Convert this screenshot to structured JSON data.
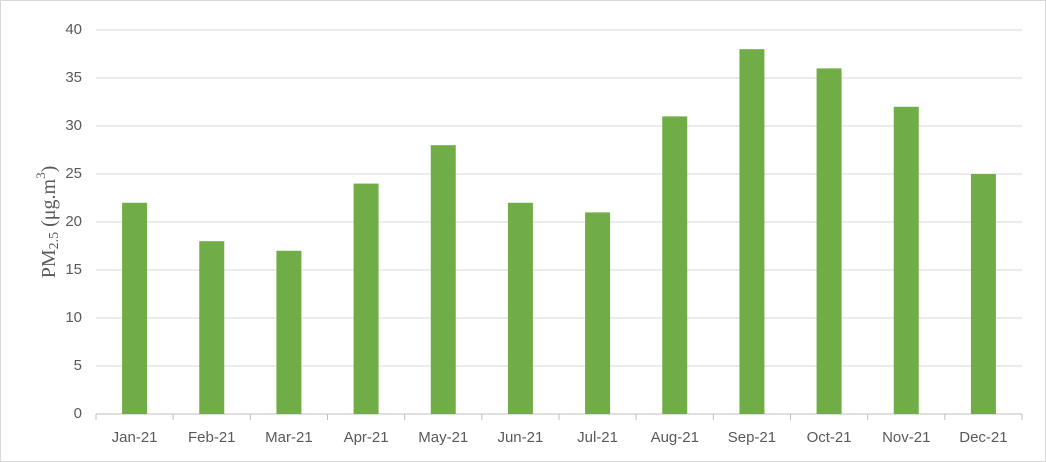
{
  "chart_data": {
    "type": "bar",
    "ylabel": [
      "PM",
      "2.5",
      " (μg.m",
      "3",
      ")"
    ],
    "categories": [
      "Jan-21",
      "Feb-21",
      "Mar-21",
      "Apr-21",
      "May-21",
      "Jun-21",
      "Jul-21",
      "Aug-21",
      "Sep-21",
      "Oct-21",
      "Nov-21",
      "Dec-21"
    ],
    "values": [
      22,
      18,
      17,
      24,
      28,
      22,
      21,
      31,
      38,
      36,
      32,
      25
    ],
    "color": "#70ad47",
    "ylim": [
      0,
      40
    ],
    "yticks": [
      0,
      5,
      10,
      15,
      20,
      25,
      30,
      35,
      40
    ],
    "grid": true
  }
}
